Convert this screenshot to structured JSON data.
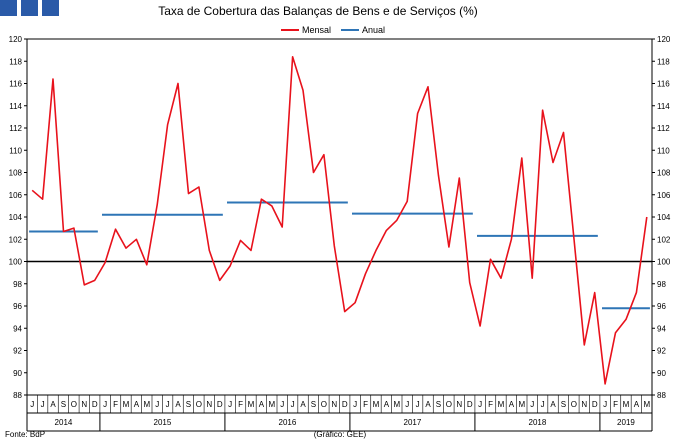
{
  "header": {
    "title": "Taxa de Cobertura das Balanças de Bens e de Serviços (%)",
    "logo_color": "#2a5aa8"
  },
  "footer": {
    "source": "Fonte: BdP",
    "credit": "(Gráfico: GEE)"
  },
  "chart_data": {
    "type": "line",
    "title": "Taxa de Cobertura das Balanças de Bens e de Serviços (%)",
    "ylim": [
      88,
      120
    ],
    "yticks": [
      88,
      90,
      92,
      94,
      96,
      98,
      100,
      102,
      104,
      106,
      108,
      110,
      112,
      114,
      116,
      118,
      120
    ],
    "ytick_labels": [
      "88",
      "90",
      "92",
      "94",
      "96",
      "98",
      "100",
      "102",
      "104",
      "106",
      "108",
      "110",
      "112",
      "114",
      "116",
      "118",
      "120"
    ],
    "reference_line": 100,
    "legend_position": "top-center",
    "month_labels": [
      "J",
      "J",
      "A",
      "S",
      "O",
      "N",
      "D",
      "J",
      "F",
      "M",
      "A",
      "M",
      "J",
      "J",
      "A",
      "S",
      "O",
      "N",
      "D",
      "J",
      "F",
      "M",
      "A",
      "M",
      "J",
      "J",
      "A",
      "S",
      "O",
      "N",
      "D",
      "J",
      "F",
      "M",
      "A",
      "M",
      "J",
      "J",
      "A",
      "S",
      "O",
      "N",
      "D",
      "J",
      "F",
      "M",
      "A",
      "M",
      "J",
      "J",
      "A",
      "S",
      "O",
      "N",
      "D",
      "J",
      "F",
      "M",
      "A",
      "M"
    ],
    "year_groups": [
      {
        "label": "2014",
        "count": 7
      },
      {
        "label": "2015",
        "count": 12
      },
      {
        "label": "2016",
        "count": 12
      },
      {
        "label": "2017",
        "count": 12
      },
      {
        "label": "2018",
        "count": 12
      },
      {
        "label": "2019",
        "count": 5
      }
    ],
    "series": [
      {
        "name": "Mensal",
        "color": "#e8121c",
        "values": [
          106.4,
          105.6,
          116.4,
          102.7,
          103.0,
          97.9,
          98.3,
          99.9,
          102.9,
          101.2,
          102.0,
          99.7,
          105.1,
          112.3,
          116.0,
          106.1,
          106.7,
          101.0,
          98.3,
          99.6,
          101.9,
          101.0,
          105.6,
          105.0,
          103.1,
          118.4,
          115.4,
          108.0,
          109.6,
          101.4,
          95.5,
          96.3,
          98.9,
          101.0,
          102.8,
          103.7,
          105.4,
          113.3,
          115.7,
          107.7,
          101.3,
          107.5,
          98.1,
          94.2,
          100.2,
          98.5,
          102.0,
          109.3,
          98.5,
          113.6,
          108.9,
          111.6,
          102.1,
          92.5,
          97.2,
          89.0,
          93.6,
          94.8,
          97.2,
          104.0
        ]
      },
      {
        "name": "Anual",
        "color": "#2e75b6",
        "segments": [
          {
            "year": "2014",
            "start": 0,
            "end": 6,
            "value": 102.7
          },
          {
            "year": "2015",
            "start": 7,
            "end": 18,
            "value": 104.2
          },
          {
            "year": "2016",
            "start": 19,
            "end": 30,
            "value": 105.3
          },
          {
            "year": "2017",
            "start": 31,
            "end": 42,
            "value": 104.3
          },
          {
            "year": "2018",
            "start": 43,
            "end": 54,
            "value": 102.3
          },
          {
            "year": "2019",
            "start": 55,
            "end": 59,
            "value": 95.8
          }
        ]
      }
    ]
  }
}
